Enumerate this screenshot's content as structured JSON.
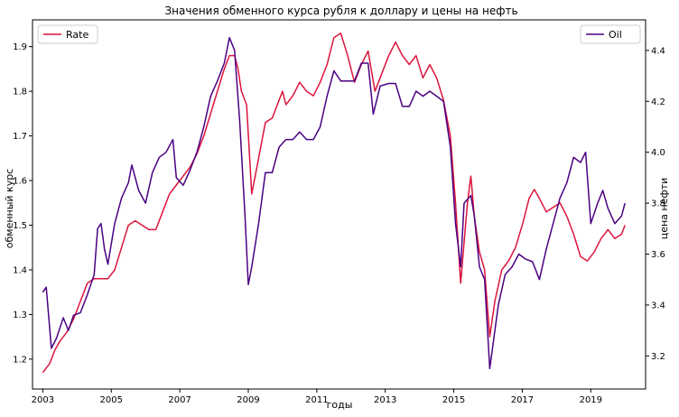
{
  "chart_data": {
    "type": "line",
    "title": "Значения обменного курса рубля к доллару и цены на нефть",
    "xlabel": "годы",
    "ylabel_left": "обменный курс",
    "ylabel_right": "цена нефти",
    "xlim": [
      2002.7,
      2020.6
    ],
    "ylim_left": [
      1.133,
      1.96
    ],
    "ylim_right": [
      3.07,
      4.52
    ],
    "x_ticks": [
      2003,
      2005,
      2007,
      2009,
      2011,
      2013,
      2015,
      2017,
      2019
    ],
    "x_tick_labels": [
      "2003",
      "2005",
      "2007",
      "2009",
      "2011",
      "2013",
      "2015",
      "2017",
      "2019"
    ],
    "y_left_ticks": [
      1.2,
      1.3,
      1.4,
      1.5,
      1.6,
      1.7,
      1.8,
      1.9
    ],
    "y_left_tick_labels": [
      "1.2",
      "1.3",
      "1.4",
      "1.5",
      "1.6",
      "1.7",
      "1.8",
      "1.9"
    ],
    "y_right_ticks": [
      3.2,
      3.4,
      3.6,
      3.8,
      4.0,
      4.2,
      4.4
    ],
    "y_right_tick_labels": [
      "3.2",
      "3.4",
      "3.6",
      "3.8",
      "4.0",
      "4.2",
      "4.4"
    ],
    "grid": false,
    "series": [
      {
        "name": "Rate",
        "axis": "left",
        "color": "#dc143c",
        "legend_position": "upper-left",
        "points": [
          [
            2003.0,
            1.17
          ],
          [
            2003.2,
            1.19
          ],
          [
            2003.35,
            1.22
          ],
          [
            2003.5,
            1.24
          ],
          [
            2003.7,
            1.26
          ],
          [
            2003.9,
            1.29
          ],
          [
            2004.1,
            1.33
          ],
          [
            2004.3,
            1.37
          ],
          [
            2004.5,
            1.38
          ],
          [
            2004.7,
            1.38
          ],
          [
            2004.9,
            1.38
          ],
          [
            2005.1,
            1.4
          ],
          [
            2005.3,
            1.45
          ],
          [
            2005.5,
            1.5
          ],
          [
            2005.7,
            1.51
          ],
          [
            2005.9,
            1.5
          ],
          [
            2006.1,
            1.49
          ],
          [
            2006.3,
            1.49
          ],
          [
            2006.5,
            1.53
          ],
          [
            2006.7,
            1.57
          ],
          [
            2006.9,
            1.59
          ],
          [
            2007.1,
            1.61
          ],
          [
            2007.3,
            1.63
          ],
          [
            2007.5,
            1.66
          ],
          [
            2007.7,
            1.7
          ],
          [
            2007.9,
            1.75
          ],
          [
            2008.1,
            1.8
          ],
          [
            2008.3,
            1.85
          ],
          [
            2008.45,
            1.88
          ],
          [
            2008.6,
            1.88
          ],
          [
            2008.7,
            1.85
          ],
          [
            2008.8,
            1.8
          ],
          [
            2008.95,
            1.77
          ],
          [
            2009.1,
            1.57
          ],
          [
            2009.3,
            1.65
          ],
          [
            2009.5,
            1.73
          ],
          [
            2009.7,
            1.74
          ],
          [
            2009.9,
            1.78
          ],
          [
            2010.0,
            1.8
          ],
          [
            2010.1,
            1.77
          ],
          [
            2010.3,
            1.79
          ],
          [
            2010.5,
            1.82
          ],
          [
            2010.7,
            1.8
          ],
          [
            2010.9,
            1.79
          ],
          [
            2011.1,
            1.82
          ],
          [
            2011.3,
            1.86
          ],
          [
            2011.5,
            1.92
          ],
          [
            2011.7,
            1.93
          ],
          [
            2011.9,
            1.88
          ],
          [
            2012.1,
            1.82
          ],
          [
            2012.3,
            1.86
          ],
          [
            2012.5,
            1.89
          ],
          [
            2012.7,
            1.8
          ],
          [
            2012.9,
            1.84
          ],
          [
            2013.1,
            1.88
          ],
          [
            2013.3,
            1.91
          ],
          [
            2013.5,
            1.88
          ],
          [
            2013.7,
            1.86
          ],
          [
            2013.9,
            1.88
          ],
          [
            2014.1,
            1.83
          ],
          [
            2014.3,
            1.86
          ],
          [
            2014.5,
            1.83
          ],
          [
            2014.7,
            1.78
          ],
          [
            2014.9,
            1.7
          ],
          [
            2015.05,
            1.55
          ],
          [
            2015.2,
            1.37
          ],
          [
            2015.4,
            1.55
          ],
          [
            2015.5,
            1.61
          ],
          [
            2015.6,
            1.52
          ],
          [
            2015.75,
            1.44
          ],
          [
            2015.9,
            1.4
          ],
          [
            2016.05,
            1.25
          ],
          [
            2016.2,
            1.33
          ],
          [
            2016.4,
            1.4
          ],
          [
            2016.6,
            1.42
          ],
          [
            2016.8,
            1.45
          ],
          [
            2017.0,
            1.5
          ],
          [
            2017.2,
            1.56
          ],
          [
            2017.35,
            1.58
          ],
          [
            2017.5,
            1.56
          ],
          [
            2017.7,
            1.53
          ],
          [
            2017.9,
            1.54
          ],
          [
            2018.1,
            1.55
          ],
          [
            2018.3,
            1.52
          ],
          [
            2018.5,
            1.48
          ],
          [
            2018.7,
            1.43
          ],
          [
            2018.9,
            1.42
          ],
          [
            2019.1,
            1.44
          ],
          [
            2019.3,
            1.47
          ],
          [
            2019.5,
            1.49
          ],
          [
            2019.7,
            1.47
          ],
          [
            2019.9,
            1.48
          ],
          [
            2020.0,
            1.5
          ]
        ]
      },
      {
        "name": "Oil",
        "axis": "right",
        "color": "#4b0082",
        "legend_position": "upper-right",
        "points": [
          [
            2003.0,
            3.45
          ],
          [
            2003.1,
            3.47
          ],
          [
            2003.25,
            3.23
          ],
          [
            2003.4,
            3.27
          ],
          [
            2003.6,
            3.35
          ],
          [
            2003.75,
            3.3
          ],
          [
            2003.9,
            3.36
          ],
          [
            2004.1,
            3.37
          ],
          [
            2004.3,
            3.44
          ],
          [
            2004.5,
            3.52
          ],
          [
            2004.6,
            3.7
          ],
          [
            2004.7,
            3.72
          ],
          [
            2004.8,
            3.62
          ],
          [
            2004.9,
            3.56
          ],
          [
            2005.1,
            3.72
          ],
          [
            2005.3,
            3.82
          ],
          [
            2005.5,
            3.88
          ],
          [
            2005.6,
            3.95
          ],
          [
            2005.8,
            3.85
          ],
          [
            2006.0,
            3.8
          ],
          [
            2006.2,
            3.92
          ],
          [
            2006.4,
            3.98
          ],
          [
            2006.6,
            4.0
          ],
          [
            2006.8,
            4.05
          ],
          [
            2006.9,
            3.9
          ],
          [
            2007.1,
            3.87
          ],
          [
            2007.3,
            3.93
          ],
          [
            2007.5,
            4.0
          ],
          [
            2007.7,
            4.1
          ],
          [
            2007.9,
            4.22
          ],
          [
            2008.1,
            4.28
          ],
          [
            2008.3,
            4.35
          ],
          [
            2008.45,
            4.45
          ],
          [
            2008.6,
            4.4
          ],
          [
            2008.75,
            4.12
          ],
          [
            2008.9,
            3.76
          ],
          [
            2009.0,
            3.48
          ],
          [
            2009.1,
            3.55
          ],
          [
            2009.3,
            3.72
          ],
          [
            2009.5,
            3.92
          ],
          [
            2009.7,
            3.92
          ],
          [
            2009.9,
            4.02
          ],
          [
            2010.1,
            4.05
          ],
          [
            2010.3,
            4.05
          ],
          [
            2010.5,
            4.08
          ],
          [
            2010.7,
            4.05
          ],
          [
            2010.9,
            4.05
          ],
          [
            2011.1,
            4.1
          ],
          [
            2011.3,
            4.22
          ],
          [
            2011.5,
            4.32
          ],
          [
            2011.7,
            4.28
          ],
          [
            2011.9,
            4.28
          ],
          [
            2012.1,
            4.28
          ],
          [
            2012.3,
            4.35
          ],
          [
            2012.5,
            4.35
          ],
          [
            2012.65,
            4.15
          ],
          [
            2012.85,
            4.26
          ],
          [
            2013.1,
            4.27
          ],
          [
            2013.3,
            4.27
          ],
          [
            2013.5,
            4.18
          ],
          [
            2013.7,
            4.18
          ],
          [
            2013.9,
            4.24
          ],
          [
            2014.1,
            4.22
          ],
          [
            2014.3,
            4.24
          ],
          [
            2014.5,
            4.22
          ],
          [
            2014.7,
            4.2
          ],
          [
            2014.9,
            4.02
          ],
          [
            2015.05,
            3.72
          ],
          [
            2015.2,
            3.55
          ],
          [
            2015.3,
            3.8
          ],
          [
            2015.5,
            3.83
          ],
          [
            2015.6,
            3.75
          ],
          [
            2015.75,
            3.55
          ],
          [
            2015.9,
            3.5
          ],
          [
            2016.05,
            3.15
          ],
          [
            2016.15,
            3.25
          ],
          [
            2016.3,
            3.4
          ],
          [
            2016.5,
            3.52
          ],
          [
            2016.7,
            3.55
          ],
          [
            2016.9,
            3.6
          ],
          [
            2017.1,
            3.58
          ],
          [
            2017.3,
            3.57
          ],
          [
            2017.5,
            3.5
          ],
          [
            2017.7,
            3.62
          ],
          [
            2017.9,
            3.72
          ],
          [
            2018.1,
            3.82
          ],
          [
            2018.3,
            3.88
          ],
          [
            2018.5,
            3.98
          ],
          [
            2018.7,
            3.96
          ],
          [
            2018.85,
            4.0
          ],
          [
            2019.0,
            3.72
          ],
          [
            2019.2,
            3.8
          ],
          [
            2019.35,
            3.85
          ],
          [
            2019.5,
            3.78
          ],
          [
            2019.7,
            3.72
          ],
          [
            2019.9,
            3.75
          ],
          [
            2020.0,
            3.8
          ]
        ]
      }
    ]
  }
}
